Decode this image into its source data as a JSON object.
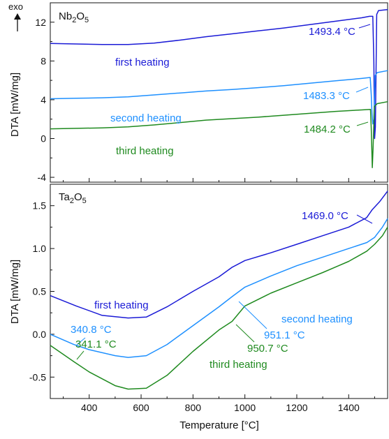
{
  "chart_data": [
    {
      "type": "line",
      "panel_label": "Nb",
      "panel_label_sub1": "2",
      "panel_label_mid": "O",
      "panel_label_sub2": "5",
      "ylabel": "DTA [mW/mg]",
      "exo_label": "exo",
      "xlim": [
        250,
        1550
      ],
      "ylim": [
        -4.5,
        14
      ],
      "yticks": [
        -4,
        0,
        4,
        8,
        12
      ],
      "ytick_labels": [
        "-4",
        "0",
        "4",
        "8",
        "12"
      ],
      "series": [
        {
          "name": "first heating",
          "color": "#1a1ad6",
          "points": [
            [
              250,
              9.8
            ],
            [
              350,
              9.75
            ],
            [
              450,
              9.7
            ],
            [
              550,
              9.7
            ],
            [
              650,
              9.85
            ],
            [
              750,
              10.15
            ],
            [
              850,
              10.5
            ],
            [
              950,
              10.8
            ],
            [
              1050,
              11.1
            ],
            [
              1150,
              11.4
            ],
            [
              1250,
              11.75
            ],
            [
              1350,
              12.1
            ],
            [
              1450,
              12.45
            ],
            [
              1480,
              12.6
            ],
            [
              1493,
              12.6
            ],
            [
              1497,
              8
            ],
            [
              1500,
              0
            ],
            [
              1503,
              1.2
            ],
            [
              1508,
              12.8
            ],
            [
              1515,
              13.2
            ],
            [
              1550,
              13.3
            ]
          ],
          "annotation": "1493.4 °C"
        },
        {
          "name": "second heating",
          "color": "#1e90ff",
          "points": [
            [
              250,
              4.1
            ],
            [
              350,
              4.15
            ],
            [
              450,
              4.2
            ],
            [
              550,
              4.3
            ],
            [
              650,
              4.5
            ],
            [
              750,
              4.7
            ],
            [
              850,
              4.9
            ],
            [
              950,
              5.05
            ],
            [
              1050,
              5.25
            ],
            [
              1150,
              5.45
            ],
            [
              1250,
              5.7
            ],
            [
              1350,
              5.95
            ],
            [
              1450,
              6.2
            ],
            [
              1483,
              6.3
            ],
            [
              1487,
              4.5
            ],
            [
              1490,
              2.5
            ],
            [
              1493,
              1.5
            ],
            [
              1497,
              2.0
            ],
            [
              1502,
              6.5
            ],
            [
              1510,
              6.8
            ],
            [
              1550,
              7.0
            ]
          ],
          "annotation": "1483.3 °C"
        },
        {
          "name": "third heating",
          "color": "#1f8a1f",
          "points": [
            [
              250,
              1.0
            ],
            [
              350,
              1.05
            ],
            [
              450,
              1.1
            ],
            [
              550,
              1.2
            ],
            [
              650,
              1.4
            ],
            [
              750,
              1.65
            ],
            [
              850,
              1.9
            ],
            [
              950,
              2.05
            ],
            [
              1050,
              2.2
            ],
            [
              1150,
              2.4
            ],
            [
              1250,
              2.6
            ],
            [
              1350,
              2.8
            ],
            [
              1450,
              2.95
            ],
            [
              1484,
              3.0
            ],
            [
              1487,
              1.0
            ],
            [
              1491,
              -3.0
            ],
            [
              1494,
              -1.0
            ],
            [
              1499,
              3.3
            ],
            [
              1510,
              3.6
            ],
            [
              1550,
              3.8
            ]
          ],
          "annotation": "1484.2 °C"
        }
      ]
    },
    {
      "type": "line",
      "panel_label": "Ta",
      "panel_label_sub1": "2",
      "panel_label_mid": "O",
      "panel_label_sub2": "5",
      "xlabel": "Temperature [°C]",
      "ylabel": "DTA [mW/mg]",
      "xlim": [
        250,
        1550
      ],
      "ylim": [
        -0.75,
        1.75
      ],
      "xticks": [
        400,
        600,
        800,
        1000,
        1200,
        1400
      ],
      "xtick_labels": [
        "400",
        "600",
        "800",
        "1000",
        "1200",
        "1400"
      ],
      "yticks": [
        -0.5,
        0.0,
        0.5,
        1.0,
        1.5
      ],
      "ytick_labels": [
        "-0.5",
        "0.0",
        "0.5",
        "1.0",
        "1.5"
      ],
      "series": [
        {
          "name": "first heating",
          "color": "#1a1ad6",
          "points": [
            [
              250,
              0.45
            ],
            [
              350,
              0.33
            ],
            [
              450,
              0.22
            ],
            [
              550,
              0.19
            ],
            [
              620,
              0.2
            ],
            [
              700,
              0.32
            ],
            [
              800,
              0.5
            ],
            [
              900,
              0.67
            ],
            [
              950,
              0.78
            ],
            [
              1000,
              0.86
            ],
            [
              1100,
              0.95
            ],
            [
              1200,
              1.05
            ],
            [
              1300,
              1.15
            ],
            [
              1400,
              1.25
            ],
            [
              1469,
              1.36
            ],
            [
              1490,
              1.45
            ],
            [
              1520,
              1.55
            ],
            [
              1550,
              1.67
            ]
          ],
          "annotation": "1469.0 °C"
        },
        {
          "name": "second heating",
          "color": "#1e90ff",
          "points": [
            [
              250,
              0.0
            ],
            [
              340.8,
              -0.12
            ],
            [
              400,
              -0.18
            ],
            [
              500,
              -0.25
            ],
            [
              550,
              -0.27
            ],
            [
              620,
              -0.25
            ],
            [
              700,
              -0.12
            ],
            [
              800,
              0.1
            ],
            [
              900,
              0.32
            ],
            [
              951.1,
              0.44
            ],
            [
              1000,
              0.55
            ],
            [
              1100,
              0.68
            ],
            [
              1200,
              0.8
            ],
            [
              1300,
              0.9
            ],
            [
              1400,
              1.0
            ],
            [
              1470,
              1.07
            ],
            [
              1500,
              1.13
            ],
            [
              1530,
              1.25
            ],
            [
              1550,
              1.35
            ]
          ],
          "annotation_a": "340.8 °C",
          "annotation_b": "951.1 °C"
        },
        {
          "name": "third heating",
          "color": "#1f8a1f",
          "points": [
            [
              250,
              -0.13
            ],
            [
              341.1,
              -0.32
            ],
            [
              400,
              -0.44
            ],
            [
              500,
              -0.6
            ],
            [
              550,
              -0.64
            ],
            [
              620,
              -0.63
            ],
            [
              700,
              -0.48
            ],
            [
              800,
              -0.2
            ],
            [
              900,
              0.05
            ],
            [
              950.7,
              0.15
            ],
            [
              1000,
              0.33
            ],
            [
              1100,
              0.48
            ],
            [
              1200,
              0.6
            ],
            [
              1300,
              0.72
            ],
            [
              1400,
              0.85
            ],
            [
              1470,
              0.97
            ],
            [
              1500,
              1.05
            ],
            [
              1530,
              1.15
            ],
            [
              1550,
              1.25
            ]
          ],
          "annotation_a": "341.1 °C",
          "annotation_b": "950.7 °C"
        }
      ]
    }
  ]
}
